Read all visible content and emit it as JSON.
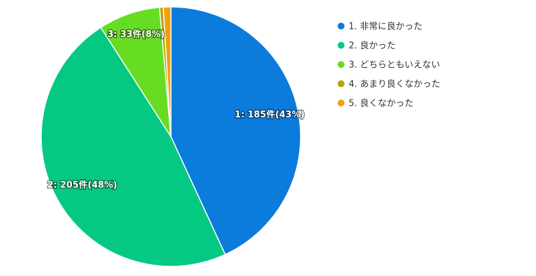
{
  "chart_data": {
    "type": "pie",
    "categories": [
      "1. 非常に良かった",
      "2. 良かった",
      "3. どちらともいえない",
      "4. あまり良くなかった",
      "5. 良くなかった"
    ],
    "values": [
      185,
      205,
      33,
      2,
      4
    ],
    "value_labels": [
      "1: 185件(43%)",
      "2: 205件(48%)",
      "3: 33件(8%)",
      null,
      null
    ],
    "colors": [
      "#0b7bdc",
      "#05c983",
      "#66dd22",
      "#b2a800",
      "#f5a00a"
    ],
    "legend": "right"
  }
}
